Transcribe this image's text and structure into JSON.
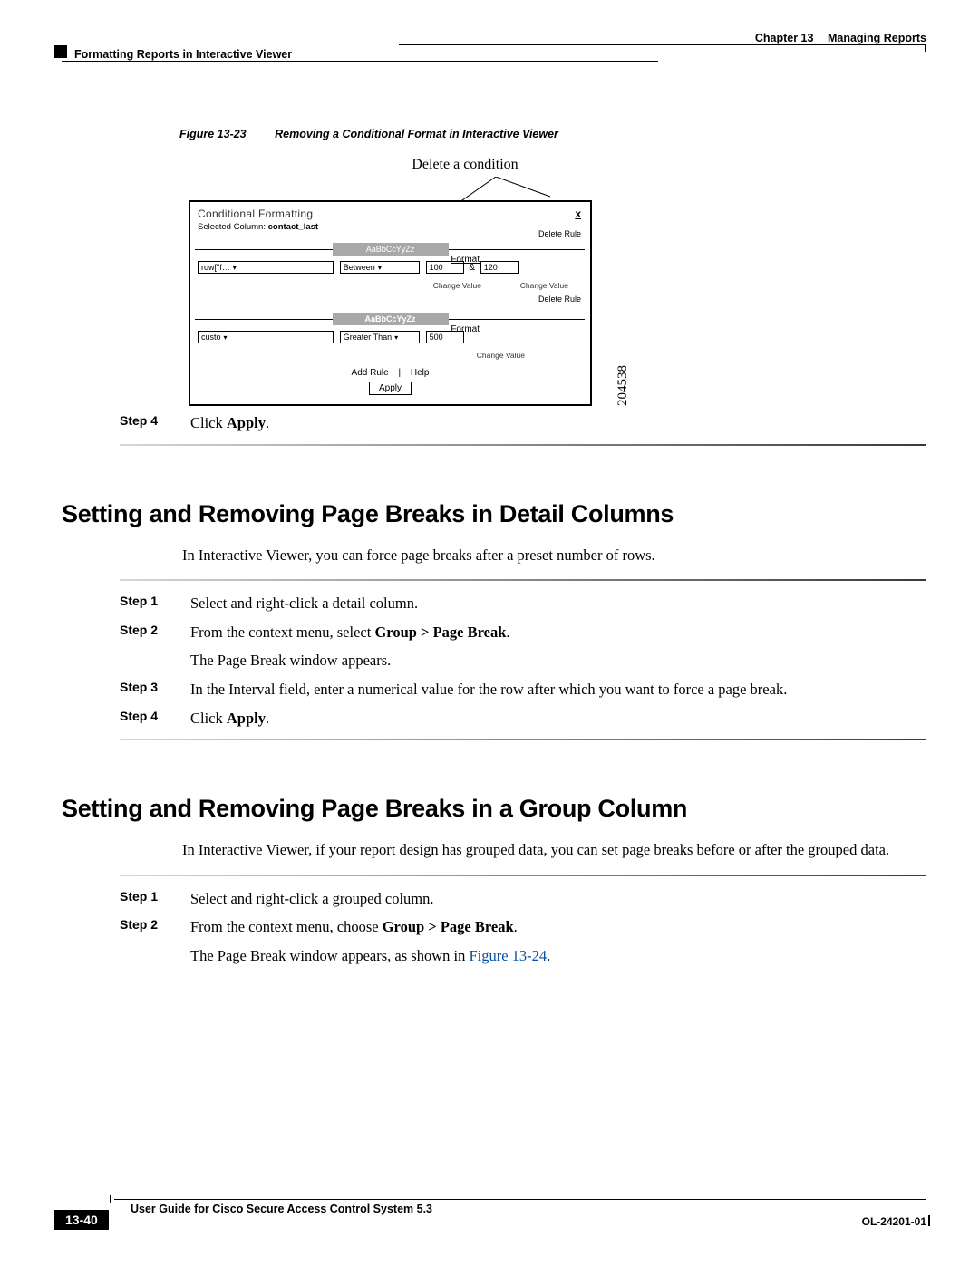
{
  "colors": {
    "link_blue": "#0052A1",
    "text": "#000000",
    "bg": "#ffffff",
    "swatch_gray": "#a8a8a8"
  },
  "header": {
    "chapter_label": "Chapter 13",
    "chapter_title": "Managing Reports",
    "breadcrumb": "Formatting Reports in Interactive Viewer"
  },
  "figure": {
    "number_label": "Figure 13-23",
    "caption": "Removing a Conditional Format in Interactive Viewer",
    "callout": "Delete a condition",
    "image_code": "204538",
    "dialog": {
      "title": "Conditional Formatting",
      "subtitle_prefix": "Selected Column: ",
      "subtitle_value": "contact_last",
      "close_button": "x",
      "delete_rule": "Delete Rule",
      "rule1": {
        "sample_text": "AaBbCcYyZz",
        "format_link": "Format",
        "column_value": "row[\"f…",
        "op_value": "Between",
        "from_value": "100",
        "to_value": "120",
        "change_value": "Change Value"
      },
      "delete_rule2": "Delete Rule",
      "rule2": {
        "sample_text": "AaBbCcYyZz",
        "format_link": "Format",
        "column_value": "custo",
        "op_value": "Greater Than",
        "from_value": "500",
        "change_value": "Change Value"
      },
      "links": {
        "add_rule": "Add Rule",
        "help": "Help",
        "sep": "|"
      },
      "apply_button": "Apply"
    }
  },
  "step_apply": {
    "label": "Step 4",
    "text_prefix": "Click ",
    "text_bold": "Apply",
    "text_suffix": "."
  },
  "section1": {
    "heading": "Setting and Removing Page Breaks in Detail Columns",
    "intro": "In Interactive Viewer, you can force page breaks after a preset number of rows.",
    "steps": [
      {
        "label": "Step 1",
        "segments": [
          {
            "t": "Select and right-click a detail column."
          }
        ]
      },
      {
        "label": "Step 2",
        "segments": [
          {
            "t": "From the context menu, select "
          },
          {
            "b": "Group > Page Break"
          },
          {
            "t": "."
          }
        ],
        "after": "The Page Break window appears."
      },
      {
        "label": "Step 3",
        "segments": [
          {
            "t": "In the Interval field, enter a numerical value for the row after which you want to force a page break."
          }
        ]
      },
      {
        "label": "Step 4",
        "segments": [
          {
            "t": "Click "
          },
          {
            "b": "Apply"
          },
          {
            "t": "."
          }
        ]
      }
    ]
  },
  "section2": {
    "heading": "Setting and Removing Page Breaks in a Group Column",
    "intro": "In Interactive Viewer, if your report design has grouped data, you can set page breaks before or after the grouped data.",
    "steps": [
      {
        "label": "Step 1",
        "segments": [
          {
            "t": "Select and right-click a grouped column."
          }
        ]
      },
      {
        "label": "Step 2",
        "segments": [
          {
            "t": "From the context menu, choose "
          },
          {
            "b": "Group > Page Break"
          },
          {
            "t": "."
          }
        ],
        "after_prefix": "The Page Break window appears, as shown in ",
        "after_link": "Figure 13-24",
        "after_suffix": "."
      }
    ]
  },
  "footer": {
    "book_title": "User Guide for Cisco Secure Access Control System 5.3",
    "doc_number": "OL-24201-01",
    "page_number": "13-40"
  }
}
